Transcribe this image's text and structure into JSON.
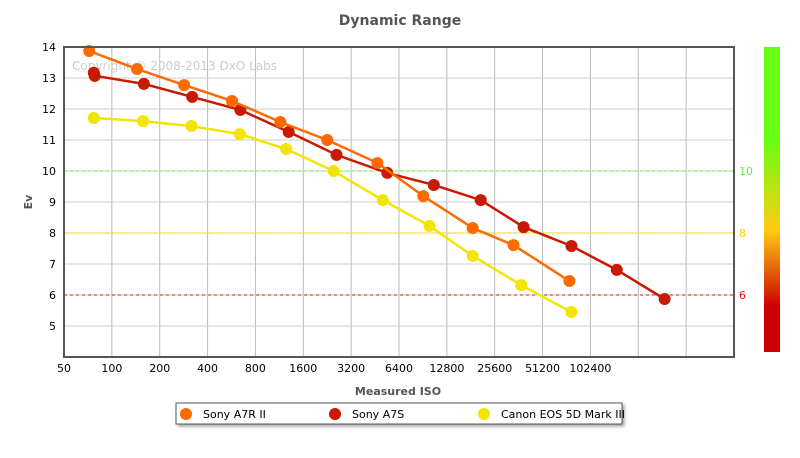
{
  "chart_data": {
    "type": "line",
    "title": "Dynamic Range",
    "watermark": "Copyright © 2008-2013 DxO Labs",
    "xlabel": "Measured ISO",
    "ylabel": "Ev",
    "x_scale": "log2",
    "xlim": [
      50,
      819200
    ],
    "ylim": [
      4,
      14
    ],
    "x_tick_labels": [
      "50",
      "100",
      "200",
      "400",
      "800",
      "1600",
      "3200",
      "6400",
      "12800",
      "25600",
      "51200",
      "102400"
    ],
    "y_tick_labels": [
      "5",
      "6",
      "7",
      "8",
      "9",
      "10",
      "11",
      "12",
      "13",
      "14"
    ],
    "grid": true,
    "legend_placement": "bottom",
    "reference_lines": [
      {
        "value": 10,
        "label": "10",
        "color": "#66ee44"
      },
      {
        "value": 8,
        "label": "8",
        "color": "#ffcc00"
      },
      {
        "value": 6,
        "label": "6",
        "color": "#dd1111"
      }
    ],
    "colorbar": {
      "colors": [
        "#66ff11",
        "#66ff11",
        "#ffcc11",
        "#cc0000",
        "#cc0000"
      ]
    },
    "series": [
      {
        "name": "Sony A7R II",
        "color": "#ff6a00",
        "x": [
          72,
          144,
          285,
          570,
          1147,
          2263,
          4680,
          9100,
          18600,
          33600,
          75500
        ],
        "y": [
          13.87,
          13.29,
          12.77,
          12.26,
          11.58,
          11.0,
          10.26,
          9.19,
          8.16,
          7.61,
          6.45
        ]
      },
      {
        "name": "Sony A7S",
        "color": "#c81a00",
        "x": [
          77,
          78,
          159,
          320,
          643,
          1295,
          2590,
          5400,
          10600,
          20900,
          38900,
          77800,
          150000,
          300000
        ],
        "y": [
          13.17,
          13.07,
          12.81,
          12.39,
          11.97,
          11.26,
          10.52,
          9.94,
          9.55,
          9.06,
          8.19,
          7.58,
          6.81,
          5.87
        ]
      },
      {
        "name": "Canon EOS 5D Mark III",
        "color": "#f2e600",
        "x": [
          77,
          157,
          317,
          638,
          1250,
          2480,
          5060,
          9950,
          18600,
          37600,
          77800
        ],
        "y": [
          11.71,
          11.61,
          11.45,
          11.19,
          10.71,
          10.0,
          9.06,
          8.23,
          7.26,
          6.32,
          5.45
        ]
      }
    ]
  }
}
